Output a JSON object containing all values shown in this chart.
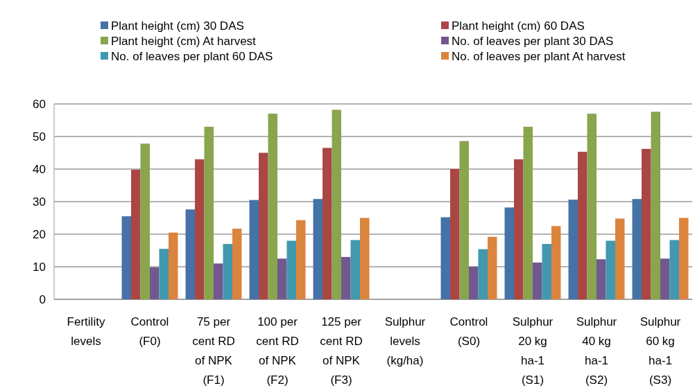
{
  "chart_data": {
    "type": "bar",
    "categories": [
      "Fertility levels",
      "Control (F0)",
      "75 per cent RD of NPK (F1)",
      "100 per cent RD of NPK (F2)",
      "125 per cent RD of NPK (F3)",
      "Sulphur levels (kg/ha)",
      "Control (S0)",
      "Sulphur 20 kg ha-1 (S1)",
      "Sulphur 40 kg ha-1 (S2)",
      "Sulphur 60 kg ha-1 (S3)"
    ],
    "series": [
      {
        "name": "Plant height (cm) 30 DAS",
        "color": "#4572a7",
        "values": [
          null,
          25.5,
          27.6,
          30.5,
          30.8,
          null,
          25.2,
          28.2,
          30.6,
          30.8
        ]
      },
      {
        "name": "Plant height (cm) 60 DAS",
        "color": "#aa4643",
        "values": [
          null,
          39.8,
          43,
          45,
          46.5,
          null,
          40,
          43,
          45.3,
          46.2
        ]
      },
      {
        "name": "Plant height (cm) At harvest",
        "color": "#89a54e",
        "values": [
          null,
          47.8,
          53,
          57,
          58.2,
          null,
          48.6,
          53,
          57,
          57.6
        ]
      },
      {
        "name": "No. of leaves per plant 30 DAS",
        "color": "#71588f",
        "values": [
          null,
          9.8,
          11,
          12.5,
          13,
          null,
          10,
          11.3,
          12.3,
          12.5
        ]
      },
      {
        "name": "No. of leaves per plant 60 DAS",
        "color": "#4198af",
        "values": [
          null,
          15.5,
          17,
          18,
          18.2,
          null,
          15.4,
          17,
          18,
          18.2
        ]
      },
      {
        "name": "No. of leaves per plant At harvest",
        "color": "#db843d",
        "values": [
          null,
          20.5,
          21.7,
          24.3,
          25,
          null,
          19.2,
          22.5,
          24.8,
          25
        ]
      }
    ],
    "ylim": [
      0,
      60
    ],
    "yticks": [
      0,
      10,
      20,
      30,
      40,
      50,
      60
    ],
    "grid": "y",
    "legend": "top"
  }
}
